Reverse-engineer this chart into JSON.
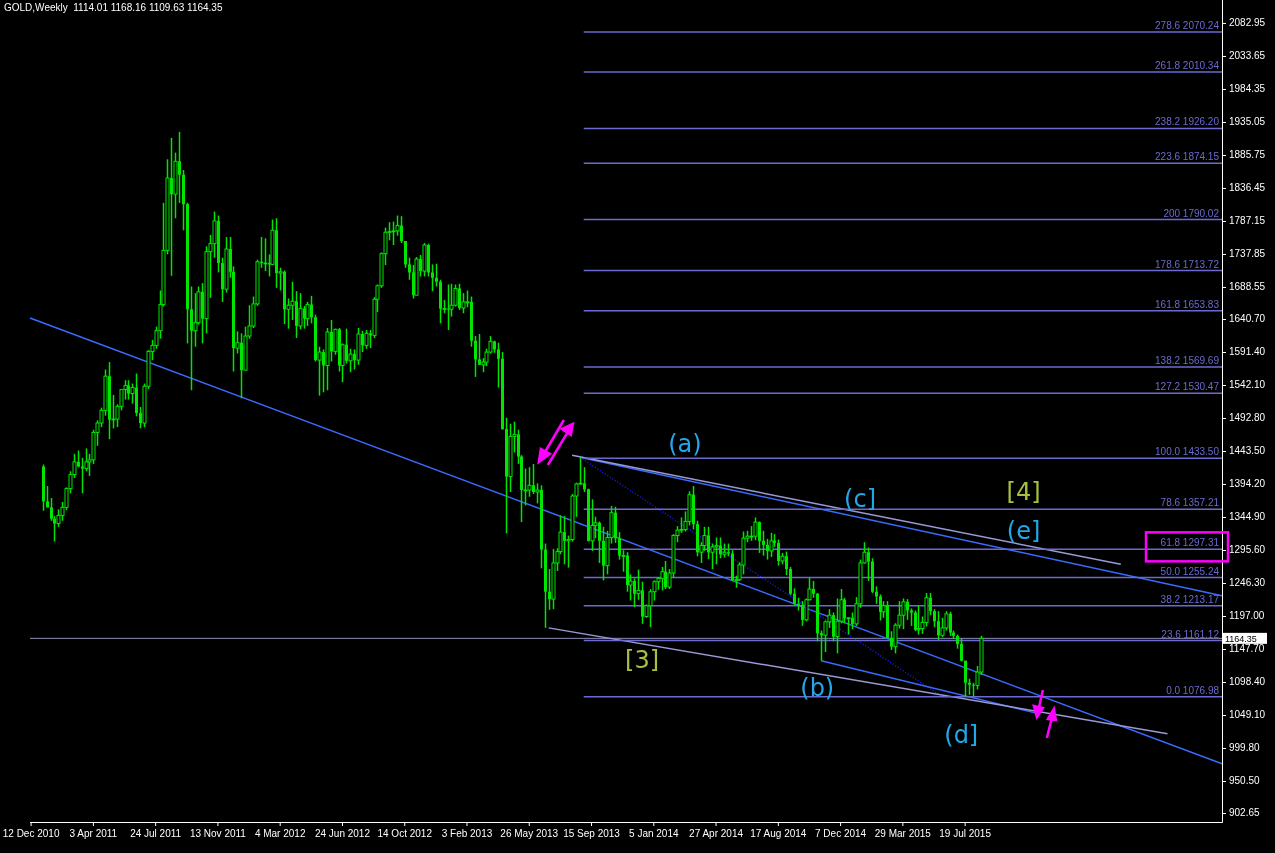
{
  "chart_data": {
    "type": "candlestick",
    "title": "GOLD,Weekly  1114.01 1168.16 1109.63 1164.35",
    "color": "#00e600",
    "xlim": [
      "2010-12-10",
      "2016-10-23"
    ],
    "ylim": [
      890,
      2118
    ],
    "xticks": [
      {
        "value": "2010-12-12",
        "label": "12 Dec 2010"
      },
      {
        "value": "2011-04-03",
        "label": "3 Apr 2011"
      },
      {
        "value": "2011-07-24",
        "label": "24 Jul 2011"
      },
      {
        "value": "2011-11-13",
        "label": "13 Nov 2011"
      },
      {
        "value": "2012-03-04",
        "label": "4 Mar 2012"
      },
      {
        "value": "2012-06-24",
        "label": "24 Jun 2012"
      },
      {
        "value": "2012-10-14",
        "label": "14 Oct 2012"
      },
      {
        "value": "2013-02-03",
        "label": "3 Feb 2013"
      },
      {
        "value": "2013-05-26",
        "label": "26 May 2013"
      },
      {
        "value": "2013-09-15",
        "label": "15 Sep 2013"
      },
      {
        "value": "2014-01-05",
        "label": "5 Jan 2014"
      },
      {
        "value": "2014-04-27",
        "label": "27 Apr 2014"
      },
      {
        "value": "2014-08-17",
        "label": "17 Aug 2014"
      },
      {
        "value": "2014-12-07",
        "label": "7 Dec 2014"
      },
      {
        "value": "2015-03-29",
        "label": "29 Mar 2015"
      },
      {
        "value": "2015-07-19",
        "label": "19 Jul 2015"
      }
    ],
    "yticks": [
      2082.95,
      2033.65,
      1984.35,
      1935.05,
      1885.75,
      1836.45,
      1787.15,
      1737.85,
      1688.55,
      {
        "value": 1640.7,
        "label": "1640.70"
      },
      {
        "value": 1591.4,
        "label": "1591.40"
      },
      {
        "value": 1542.1,
        "label": "1542.10"
      },
      {
        "value": 1492.8,
        "label": "1492.80"
      },
      {
        "value": 1443.5,
        "label": "1443.50"
      },
      {
        "value": 1394.2,
        "label": "1394.20"
      },
      {
        "value": 1344.9,
        "label": "1344.90"
      },
      {
        "value": 1295.6,
        "label": "1295.60"
      },
      {
        "value": 1246.3,
        "label": "1246.30"
      },
      {
        "value": 1197,
        "label": "1197.00"
      },
      {
        "value": 1147.7,
        "label": "1147.70"
      },
      {
        "value": 1098.4,
        "label": "1098.40"
      },
      {
        "value": 1049.1,
        "label": "1049.10"
      },
      {
        "value": 999.8,
        "label": "999.80"
      },
      {
        "value": 950.5,
        "label": "950.50"
      },
      902.65
    ],
    "grid": false,
    "x": [
      "2011-01-02",
      "2011-01-09",
      "2011-01-16",
      "2011-01-23",
      "2011-01-30",
      "2011-02-06",
      "2011-02-13",
      "2011-02-20",
      "2011-02-27",
      "2011-03-06",
      "2011-03-13",
      "2011-03-20",
      "2011-03-27",
      "2011-04-03",
      "2011-04-10",
      "2011-04-17",
      "2011-04-24",
      "2011-05-01",
      "2011-05-08",
      "2011-05-15",
      "2011-05-22",
      "2011-05-29",
      "2011-06-05",
      "2011-06-12",
      "2011-06-19",
      "2011-06-26",
      "2011-07-03",
      "2011-07-10",
      "2011-07-17",
      "2011-07-24",
      "2011-07-31",
      "2011-08-07",
      "2011-08-14",
      "2011-08-21",
      "2011-08-28",
      "2011-09-04",
      "2011-09-11",
      "2011-09-18",
      "2011-09-25",
      "2011-10-02",
      "2011-10-09",
      "2011-10-16",
      "2011-10-23",
      "2011-10-30",
      "2011-11-06",
      "2011-11-13",
      "2011-11-20",
      "2011-11-27",
      "2011-12-04",
      "2011-12-11",
      "2011-12-18",
      "2011-12-25",
      "2012-01-01",
      "2012-01-08",
      "2012-01-15",
      "2012-01-22",
      "2012-01-29",
      "2012-02-05",
      "2012-02-12",
      "2012-02-19",
      "2012-02-26",
      "2012-03-04",
      "2012-03-11",
      "2012-03-18",
      "2012-03-25",
      "2012-04-01",
      "2012-04-08",
      "2012-04-15",
      "2012-04-22",
      "2012-04-29",
      "2012-05-06",
      "2012-05-13",
      "2012-05-20",
      "2012-05-27",
      "2012-06-03",
      "2012-06-10",
      "2012-06-17",
      "2012-06-24",
      "2012-07-01",
      "2012-07-08",
      "2012-07-15",
      "2012-07-22",
      "2012-07-29",
      "2012-08-05",
      "2012-08-12",
      "2012-08-19",
      "2012-08-26",
      "2012-09-02",
      "2012-09-09",
      "2012-09-16",
      "2012-09-23",
      "2012-09-30",
      "2012-10-07",
      "2012-10-14",
      "2012-10-21",
      "2012-10-28",
      "2012-11-04",
      "2012-11-11",
      "2012-11-18",
      "2012-11-25",
      "2012-12-02",
      "2012-12-09",
      "2012-12-16",
      "2012-12-23",
      "2012-12-30",
      "2013-01-06",
      "2013-01-13",
      "2013-01-20",
      "2013-01-27",
      "2013-02-03",
      "2013-02-10",
      "2013-02-17",
      "2013-02-24",
      "2013-03-03",
      "2013-03-10",
      "2013-03-17",
      "2013-03-24",
      "2013-03-31",
      "2013-04-07",
      "2013-04-14",
      "2013-04-21",
      "2013-04-28",
      "2013-05-05",
      "2013-05-12",
      "2013-05-19",
      "2013-05-26",
      "2013-06-02",
      "2013-06-09",
      "2013-06-16",
      "2013-06-23",
      "2013-06-30",
      "2013-07-07",
      "2013-07-14",
      "2013-07-21",
      "2013-07-28",
      "2013-08-04",
      "2013-08-11",
      "2013-08-18",
      "2013-08-25",
      "2013-09-01",
      "2013-09-08",
      "2013-09-15",
      "2013-09-22",
      "2013-09-29",
      "2013-10-06",
      "2013-10-13",
      "2013-10-20",
      "2013-10-27",
      "2013-11-03",
      "2013-11-10",
      "2013-11-17",
      "2013-11-24",
      "2013-12-01",
      "2013-12-08",
      "2013-12-15",
      "2013-12-22",
      "2013-12-29",
      "2014-01-05",
      "2014-01-12",
      "2014-01-19",
      "2014-01-26",
      "2014-02-02",
      "2014-02-09",
      "2014-02-16",
      "2014-02-23",
      "2014-03-02",
      "2014-03-09",
      "2014-03-16",
      "2014-03-23",
      "2014-03-30",
      "2014-04-06",
      "2014-04-13",
      "2014-04-20",
      "2014-04-27",
      "2014-05-04",
      "2014-05-11",
      "2014-05-18",
      "2014-05-25",
      "2014-06-01",
      "2014-06-08",
      "2014-06-15",
      "2014-06-22",
      "2014-06-29",
      "2014-07-06",
      "2014-07-13",
      "2014-07-20",
      "2014-07-27",
      "2014-08-03",
      "2014-08-10",
      "2014-08-17",
      "2014-08-24",
      "2014-08-31",
      "2014-09-07",
      "2014-09-14",
      "2014-09-21",
      "2014-09-28",
      "2014-10-05",
      "2014-10-12",
      "2014-10-19",
      "2014-10-26",
      "2014-11-02",
      "2014-11-09",
      "2014-11-16",
      "2014-11-23",
      "2014-11-30",
      "2014-12-07",
      "2014-12-14",
      "2014-12-21",
      "2014-12-28",
      "2015-01-04",
      "2015-01-11",
      "2015-01-18",
      "2015-01-25",
      "2015-02-01",
      "2015-02-08",
      "2015-02-15",
      "2015-02-22",
      "2015-03-01",
      "2015-03-08",
      "2015-03-15",
      "2015-03-22",
      "2015-03-29",
      "2015-04-05",
      "2015-04-12",
      "2015-04-19",
      "2015-04-26",
      "2015-05-03",
      "2015-05-10",
      "2015-05-17",
      "2015-05-24",
      "2015-05-31",
      "2015-06-07",
      "2015-06-14",
      "2015-06-21",
      "2015-06-28",
      "2015-07-05",
      "2015-07-12",
      "2015-07-19",
      "2015-07-26",
      "2015-08-02",
      "2015-08-09",
      "2015-08-16"
    ],
    "ohlc": [
      [
        1421,
        1424,
        1355,
        1369
      ],
      [
        1369,
        1392,
        1360,
        1360
      ],
      [
        1360,
        1374,
        1340,
        1343
      ],
      [
        1343,
        1347,
        1309,
        1336
      ],
      [
        1336,
        1357,
        1331,
        1348
      ],
      [
        1348,
        1368,
        1340,
        1360
      ],
      [
        1360,
        1390,
        1356,
        1388
      ],
      [
        1388,
        1414,
        1381,
        1409
      ],
      [
        1409,
        1440,
        1404,
        1428
      ],
      [
        1428,
        1445,
        1420,
        1421
      ],
      [
        1421,
        1434,
        1381,
        1418
      ],
      [
        1418,
        1448,
        1414,
        1428
      ],
      [
        1428,
        1440,
        1407,
        1431
      ],
      [
        1431,
        1476,
        1425,
        1472
      ],
      [
        1472,
        1490,
        1452,
        1486
      ],
      [
        1486,
        1509,
        1480,
        1505
      ],
      [
        1505,
        1566,
        1497,
        1556
      ],
      [
        1556,
        1577,
        1462,
        1491
      ],
      [
        1491,
        1528,
        1478,
        1492
      ],
      [
        1492,
        1514,
        1480,
        1511
      ],
      [
        1511,
        1536,
        1505,
        1536
      ],
      [
        1536,
        1550,
        1521,
        1542
      ],
      [
        1542,
        1550,
        1521,
        1530
      ],
      [
        1530,
        1545,
        1515,
        1539
      ],
      [
        1539,
        1560,
        1496,
        1501
      ],
      [
        1501,
        1510,
        1478,
        1486
      ],
      [
        1486,
        1545,
        1480,
        1541
      ],
      [
        1541,
        1595,
        1537,
        1593
      ],
      [
        1593,
        1610,
        1580,
        1602
      ],
      [
        1602,
        1630,
        1597,
        1624
      ],
      [
        1624,
        1684,
        1612,
        1663
      ],
      [
        1663,
        1815,
        1660,
        1744
      ],
      [
        1744,
        1880,
        1738,
        1852
      ],
      [
        1852,
        1912,
        1706,
        1828
      ],
      [
        1828,
        1890,
        1792,
        1877
      ],
      [
        1877,
        1921,
        1815,
        1857
      ],
      [
        1857,
        1864,
        1774,
        1813
      ],
      [
        1813,
        1815,
        1605,
        1656
      ],
      [
        1656,
        1690,
        1535,
        1624
      ],
      [
        1624,
        1680,
        1600,
        1636
      ],
      [
        1636,
        1690,
        1633,
        1682
      ],
      [
        1682,
        1695,
        1605,
        1642
      ],
      [
        1642,
        1750,
        1620,
        1742
      ],
      [
        1742,
        1767,
        1673,
        1754
      ],
      [
        1754,
        1802,
        1733,
        1788
      ],
      [
        1788,
        1796,
        1711,
        1725
      ],
      [
        1725,
        1733,
        1667,
        1686
      ],
      [
        1686,
        1764,
        1681,
        1746
      ],
      [
        1746,
        1764,
        1703,
        1712
      ],
      [
        1712,
        1720,
        1563,
        1598
      ],
      [
        1598,
        1623,
        1590,
        1606
      ],
      [
        1606,
        1620,
        1523,
        1565
      ],
      [
        1565,
        1630,
        1565,
        1616
      ],
      [
        1616,
        1662,
        1612,
        1631
      ],
      [
        1631,
        1675,
        1628,
        1664
      ],
      [
        1664,
        1730,
        1661,
        1727
      ],
      [
        1727,
        1764,
        1718,
        1725
      ],
      [
        1725,
        1762,
        1713,
        1725
      ],
      [
        1725,
        1738,
        1705,
        1723
      ],
      [
        1723,
        1790,
        1722,
        1774
      ],
      [
        1774,
        1792,
        1688,
        1710
      ],
      [
        1710,
        1718,
        1684,
        1712
      ],
      [
        1712,
        1714,
        1634,
        1656
      ],
      [
        1656,
        1672,
        1627,
        1662
      ],
      [
        1662,
        1697,
        1640,
        1668
      ],
      [
        1668,
        1683,
        1613,
        1631
      ],
      [
        1631,
        1680,
        1626,
        1657
      ],
      [
        1657,
        1661,
        1627,
        1642
      ],
      [
        1642,
        1667,
        1631,
        1663
      ],
      [
        1663,
        1676,
        1635,
        1644
      ],
      [
        1644,
        1648,
        1578,
        1580
      ],
      [
        1580,
        1600,
        1527,
        1592
      ],
      [
        1592,
        1596,
        1532,
        1572
      ],
      [
        1572,
        1628,
        1535,
        1622
      ],
      [
        1622,
        1640,
        1578,
        1593
      ],
      [
        1593,
        1627,
        1588,
        1626
      ],
      [
        1626,
        1628,
        1563,
        1572
      ],
      [
        1572,
        1605,
        1547,
        1603
      ],
      [
        1603,
        1627,
        1575,
        1579
      ],
      [
        1579,
        1597,
        1562,
        1589
      ],
      [
        1589,
        1596,
        1566,
        1580
      ],
      [
        1580,
        1628,
        1573,
        1619
      ],
      [
        1619,
        1624,
        1592,
        1602
      ],
      [
        1602,
        1625,
        1597,
        1620
      ],
      [
        1620,
        1625,
        1598,
        1617
      ],
      [
        1617,
        1674,
        1613,
        1671
      ],
      [
        1671,
        1693,
        1652,
        1691
      ],
      [
        1691,
        1741,
        1688,
        1739
      ],
      [
        1739,
        1778,
        1722,
        1771
      ],
      [
        1771,
        1786,
        1759,
        1772
      ],
      [
        1772,
        1787,
        1752,
        1773
      ],
      [
        1773,
        1796,
        1766,
        1781
      ],
      [
        1781,
        1795,
        1755,
        1758
      ],
      [
        1758,
        1758,
        1718,
        1723
      ],
      [
        1723,
        1733,
        1700,
        1711
      ],
      [
        1711,
        1722,
        1672,
        1677
      ],
      [
        1677,
        1734,
        1677,
        1731
      ],
      [
        1731,
        1737,
        1705,
        1713
      ],
      [
        1713,
        1755,
        1705,
        1752
      ],
      [
        1752,
        1754,
        1705,
        1711
      ],
      [
        1711,
        1723,
        1683,
        1703
      ],
      [
        1703,
        1724,
        1690,
        1697
      ],
      [
        1697,
        1700,
        1635,
        1657
      ],
      [
        1657,
        1670,
        1650,
        1657
      ],
      [
        1657,
        1693,
        1625,
        1656
      ],
      [
        1656,
        1694,
        1645,
        1662
      ],
      [
        1662,
        1693,
        1660,
        1687
      ],
      [
        1687,
        1694,
        1655,
        1658
      ],
      [
        1658,
        1680,
        1650,
        1667
      ],
      [
        1667,
        1684,
        1659,
        1667
      ],
      [
        1667,
        1675,
        1600,
        1609
      ],
      [
        1609,
        1616,
        1555,
        1581
      ],
      [
        1581,
        1619,
        1573,
        1573
      ],
      [
        1573,
        1583,
        1562,
        1577
      ],
      [
        1577,
        1597,
        1571,
        1592
      ],
      [
        1592,
        1616,
        1590,
        1608
      ],
      [
        1608,
        1609,
        1591,
        1596
      ],
      [
        1596,
        1606,
        1539,
        1582
      ],
      [
        1582,
        1592,
        1476,
        1477
      ],
      [
        1477,
        1494,
        1321,
        1406
      ],
      [
        1406,
        1485,
        1383,
        1466
      ],
      [
        1466,
        1488,
        1442,
        1469
      ],
      [
        1469,
        1476,
        1425,
        1436
      ],
      [
        1436,
        1438,
        1338,
        1386
      ],
      [
        1386,
        1418,
        1363,
        1386
      ],
      [
        1386,
        1420,
        1376,
        1393
      ],
      [
        1393,
        1425,
        1380,
        1383
      ],
      [
        1383,
        1396,
        1366,
        1386
      ],
      [
        1386,
        1393,
        1269,
        1297
      ],
      [
        1297,
        1306,
        1180,
        1234
      ],
      [
        1234,
        1268,
        1207,
        1223
      ],
      [
        1223,
        1298,
        1208,
        1277
      ],
      [
        1277,
        1299,
        1265,
        1294
      ],
      [
        1294,
        1348,
        1290,
        1323
      ],
      [
        1323,
        1347,
        1275,
        1310
      ],
      [
        1310,
        1318,
        1270,
        1312
      ],
      [
        1312,
        1380,
        1309,
        1377
      ],
      [
        1377,
        1397,
        1346,
        1395
      ],
      [
        1395,
        1434,
        1394,
        1396
      ],
      [
        1396,
        1420,
        1383,
        1387
      ],
      [
        1387,
        1388,
        1309,
        1310
      ],
      [
        1310,
        1372,
        1295,
        1333
      ],
      [
        1333,
        1346,
        1314,
        1337
      ],
      [
        1337,
        1339,
        1277,
        1310
      ],
      [
        1310,
        1331,
        1251,
        1273
      ],
      [
        1273,
        1325,
        1260,
        1315
      ],
      [
        1315,
        1362,
        1306,
        1352
      ],
      [
        1352,
        1361,
        1307,
        1314
      ],
      [
        1314,
        1323,
        1282,
        1288
      ],
      [
        1288,
        1296,
        1264,
        1288
      ],
      [
        1288,
        1293,
        1234,
        1244
      ],
      [
        1244,
        1260,
        1221,
        1250
      ],
      [
        1250,
        1254,
        1211,
        1231
      ],
      [
        1231,
        1267,
        1222,
        1236
      ],
      [
        1236,
        1249,
        1186,
        1197
      ],
      [
        1197,
        1215,
        1195,
        1213
      ],
      [
        1213,
        1238,
        1181,
        1234
      ],
      [
        1234,
        1251,
        1221,
        1249
      ],
      [
        1249,
        1256,
        1237,
        1254
      ],
      [
        1254,
        1271,
        1236,
        1264
      ],
      [
        1264,
        1280,
        1238,
        1241
      ],
      [
        1241,
        1268,
        1238,
        1262
      ],
      [
        1262,
        1320,
        1255,
        1318
      ],
      [
        1318,
        1332,
        1308,
        1326
      ],
      [
        1326,
        1345,
        1322,
        1327
      ],
      [
        1327,
        1354,
        1324,
        1339
      ],
      [
        1339,
        1384,
        1333,
        1379
      ],
      [
        1379,
        1392,
        1327,
        1335
      ],
      [
        1335,
        1340,
        1287,
        1293
      ],
      [
        1293,
        1308,
        1277,
        1303
      ],
      [
        1303,
        1331,
        1295,
        1318
      ],
      [
        1318,
        1331,
        1283,
        1293
      ],
      [
        1293,
        1306,
        1268,
        1301
      ],
      [
        1301,
        1315,
        1275,
        1303
      ],
      [
        1303,
        1315,
        1284,
        1290
      ],
      [
        1290,
        1306,
        1285,
        1293
      ],
      [
        1293,
        1306,
        1287,
        1291
      ],
      [
        1291,
        1296,
        1250,
        1251
      ],
      [
        1251,
        1258,
        1240,
        1252
      ],
      [
        1252,
        1278,
        1250,
        1274
      ],
      [
        1274,
        1324,
        1260,
        1314
      ],
      [
        1314,
        1325,
        1308,
        1317
      ],
      [
        1317,
        1332,
        1310,
        1317
      ],
      [
        1317,
        1345,
        1311,
        1338
      ],
      [
        1338,
        1339,
        1292,
        1310
      ],
      [
        1310,
        1325,
        1288,
        1304
      ],
      [
        1304,
        1313,
        1282,
        1295
      ],
      [
        1295,
        1322,
        1286,
        1310
      ],
      [
        1310,
        1320,
        1301,
        1307
      ],
      [
        1307,
        1312,
        1273,
        1280
      ],
      [
        1280,
        1292,
        1275,
        1287
      ],
      [
        1287,
        1294,
        1259,
        1268
      ],
      [
        1268,
        1271,
        1229,
        1231
      ],
      [
        1231,
        1239,
        1214,
        1216
      ],
      [
        1216,
        1225,
        1206,
        1214
      ],
      [
        1214,
        1220,
        1183,
        1192
      ],
      [
        1192,
        1224,
        1190,
        1222
      ],
      [
        1222,
        1255,
        1221,
        1238
      ],
      [
        1238,
        1250,
        1225,
        1231
      ],
      [
        1231,
        1232,
        1160,
        1172
      ],
      [
        1172,
        1176,
        1131,
        1169
      ],
      [
        1169,
        1191,
        1144,
        1189
      ],
      [
        1189,
        1208,
        1180,
        1199
      ],
      [
        1199,
        1203,
        1160,
        1167
      ],
      [
        1167,
        1224,
        1142,
        1190
      ],
      [
        1190,
        1238,
        1187,
        1222
      ],
      [
        1222,
        1225,
        1187,
        1195
      ],
      [
        1195,
        1196,
        1170,
        1195
      ],
      [
        1195,
        1203,
        1178,
        1186
      ],
      [
        1186,
        1226,
        1183,
        1216
      ],
      [
        1216,
        1282,
        1210,
        1277
      ],
      [
        1277,
        1308,
        1276,
        1293
      ],
      [
        1293,
        1300,
        1250,
        1279
      ],
      [
        1279,
        1284,
        1232,
        1234
      ],
      [
        1234,
        1242,
        1216,
        1227
      ],
      [
        1227,
        1230,
        1191,
        1204
      ],
      [
        1204,
        1220,
        1195,
        1213
      ],
      [
        1213,
        1220,
        1164,
        1165
      ],
      [
        1165,
        1175,
        1147,
        1152
      ],
      [
        1152,
        1187,
        1142,
        1184
      ],
      [
        1184,
        1220,
        1179,
        1199
      ],
      [
        1199,
        1224,
        1178,
        1219
      ],
      [
        1219,
        1223,
        1192,
        1206
      ],
      [
        1206,
        1209,
        1183,
        1203
      ],
      [
        1203,
        1206,
        1175,
        1177
      ],
      [
        1177,
        1214,
        1170,
        1179
      ],
      [
        1179,
        1197,
        1171,
        1188
      ],
      [
        1188,
        1232,
        1182,
        1225
      ],
      [
        1225,
        1232,
        1199,
        1205
      ],
      [
        1205,
        1208,
        1181,
        1190
      ],
      [
        1190,
        1205,
        1162,
        1169
      ],
      [
        1169,
        1195,
        1166,
        1180
      ],
      [
        1180,
        1205,
        1176,
        1201
      ],
      [
        1201,
        1204,
        1168,
        1173
      ],
      [
        1173,
        1176,
        1164,
        1168
      ],
      [
        1168,
        1170,
        1149,
        1156
      ],
      [
        1156,
        1164,
        1130,
        1131
      ],
      [
        1131,
        1131,
        1077,
        1098
      ],
      [
        1098,
        1104,
        1080,
        1095
      ],
      [
        1095,
        1098,
        1078,
        1094
      ],
      [
        1094,
        1123,
        1088,
        1114
      ],
      [
        1114.01,
        1168.16,
        1109.63,
        1164.35
      ]
    ],
    "series": [
      {
        "type": "line",
        "x": [
          "2010-12-10",
          "2016-10-23"
        ],
        "values": [
          1643,
          977
        ],
        "color": "#3a6bff",
        "line_style": "solid"
      },
      {
        "type": "line",
        "x": [
          "2013-08-25",
          "2016-10-23"
        ],
        "values": [
          1435,
          1228
        ],
        "color": "#3a6bff",
        "line_style": "solid"
      },
      {
        "type": "line",
        "x": [
          "2013-08-25",
          "2015-06-14"
        ],
        "values": [
          1435,
          1074
        ],
        "color": "#1a1aff",
        "line_style": "dotted"
      },
      {
        "type": "line",
        "x": [
          "2014-11-02",
          "2015-11-22"
        ],
        "values": [
          1131,
          1053
        ],
        "color": "#3a6bff",
        "line_style": "solid"
      },
      {
        "type": "line",
        "x": [
          "2013-08-11",
          "2016-04-24"
        ],
        "values": [
          1438,
          1275
        ],
        "color": "#9a9ad6",
        "line_style": "solid"
      },
      {
        "type": "line",
        "x": [
          "2013-06-30",
          "2016-07-17"
        ],
        "values": [
          1180,
          1022
        ],
        "color": "#9a9ad6",
        "line_style": "solid"
      },
      {
        "type": "line",
        "x": [
          "2013-09-01",
          "2016-10-23"
        ],
        "values": [
          2070.24,
          2070.24
        ],
        "color": "#6a6ad0",
        "line_style": "solid"
      },
      {
        "type": "line",
        "x": [
          "2013-09-01",
          "2016-10-23"
        ],
        "values": [
          2010.34,
          2010.34
        ],
        "color": "#6a6ad0",
        "line_style": "solid"
      },
      {
        "type": "line",
        "x": [
          "2013-09-01",
          "2016-10-23"
        ],
        "values": [
          1926.2,
          1926.2
        ],
        "color": "#6a6ad0",
        "line_style": "solid"
      },
      {
        "type": "line",
        "x": [
          "2013-09-01",
          "2016-10-23"
        ],
        "values": [
          1874.15,
          1874.15
        ],
        "color": "#6a6ad0",
        "line_style": "solid"
      },
      {
        "type": "line",
        "x": [
          "2013-09-01",
          "2016-10-23"
        ],
        "values": [
          1790.02,
          1790.02
        ],
        "color": "#6a6ad0",
        "line_style": "solid"
      },
      {
        "type": "line",
        "x": [
          "2013-09-01",
          "2016-10-23"
        ],
        "values": [
          1713.72,
          1713.72
        ],
        "color": "#6a6ad0",
        "line_style": "solid"
      },
      {
        "type": "line",
        "x": [
          "2013-09-01",
          "2016-10-23"
        ],
        "values": [
          1653.83,
          1653.83
        ],
        "color": "#6a6ad0",
        "line_style": "solid"
      },
      {
        "type": "line",
        "x": [
          "2013-09-01",
          "2016-10-23"
        ],
        "values": [
          1569.69,
          1569.69
        ],
        "color": "#6a6ad0",
        "line_style": "solid"
      },
      {
        "type": "line",
        "x": [
          "2013-09-01",
          "2016-10-23"
        ],
        "values": [
          1530.47,
          1530.47
        ],
        "color": "#6a6ad0",
        "line_style": "solid"
      },
      {
        "type": "line",
        "x": [
          "2013-09-01",
          "2016-10-23"
        ],
        "values": [
          1433.5,
          1433.5
        ],
        "color": "#6a6ad0",
        "line_style": "solid"
      },
      {
        "type": "line",
        "x": [
          "2013-09-01",
          "2016-10-23"
        ],
        "values": [
          1357.21,
          1357.21
        ],
        "color": "#6a6ad0",
        "line_style": "solid"
      },
      {
        "type": "line",
        "x": [
          "2013-09-01",
          "2016-10-23"
        ],
        "values": [
          1297.31,
          1297.31
        ],
        "color": "#6a6ad0",
        "line_style": "solid"
      },
      {
        "type": "line",
        "x": [
          "2013-09-01",
          "2016-10-23"
        ],
        "values": [
          1255.24,
          1255.24
        ],
        "color": "#6a6ad0",
        "line_style": "solid"
      },
      {
        "type": "line",
        "x": [
          "2013-09-01",
          "2016-10-23"
        ],
        "values": [
          1213.17,
          1213.17
        ],
        "color": "#6a6ad0",
        "line_style": "solid"
      },
      {
        "type": "line",
        "x": [
          "2013-09-01",
          "2016-10-23"
        ],
        "values": [
          1161.12,
          1161.12
        ],
        "color": "#6a6ad0",
        "line_style": "solid"
      },
      {
        "type": "line",
        "x": [
          "2013-09-01",
          "2016-10-23"
        ],
        "values": [
          1076.98,
          1076.98
        ],
        "color": "#6a6ad0",
        "line_style": "solid"
      }
    ],
    "ref_lines": [
      {
        "axis": "y",
        "value": 1164.35,
        "label": "1164.35",
        "color": "#8c8cb4"
      }
    ],
    "annotations": [
      {
        "text": "(a)",
        "x": "2014-03-02",
        "y": 1433.5
      },
      "(b)",
      {
        "text": "(c]",
        "x": "2015-01-11",
        "y": 1352
      },
      "(d]",
      {
        "text": "(e]",
        "x": "2015-11-01",
        "y": 1304
      },
      "[3]",
      "[4]",
      {
        "text": "278.6 2070.24",
        "x": "2016-10-23",
        "y": 2070.24
      },
      {
        "text": "261.8 2010.34",
        "x": "2016-10-23",
        "y": 2010.34
      },
      {
        "text": "238.2 1926.20",
        "x": "2016-10-23",
        "y": 1926.2
      },
      {
        "text": "223.6 1874.15",
        "x": "2016-10-23",
        "y": 1874.15
      },
      {
        "text": "200 1790.02",
        "x": "2016-10-23",
        "y": 1790.02
      },
      {
        "text": "178.6 1713.72",
        "x": "2016-10-23",
        "y": 1713.72
      },
      {
        "text": "161.8 1653.83",
        "x": "2016-10-23",
        "y": 1653.83
      },
      {
        "text": "138.2 1569.69",
        "x": "2016-10-23",
        "y": 1569.69
      },
      {
        "text": "127.2 1530.47",
        "x": "2016-10-23",
        "y": 1530.47
      },
      {
        "text": "100.0 1433.50",
        "x": "2016-10-23",
        "y": 1433.5
      },
      {
        "text": "78.6 1357.21",
        "x": "2016-10-23",
        "y": 1357.21
      },
      {
        "text": "61.8 1297.31",
        "x": "2016-10-23",
        "y": 1297.31
      },
      {
        "text": "50.0 1255.24",
        "x": "2016-10-23",
        "y": 1255.24
      },
      {
        "text": "38.2 1213.17",
        "x": "2016-10-23",
        "y": 1213.17
      },
      {
        "text": "23.6 1161.12",
        "x": "2016-10-23",
        "y": 1161.12
      },
      {
        "text": "0.0 1076.98",
        "x": "2016-10-23",
        "y": 1076.98
      }
    ]
  }
}
